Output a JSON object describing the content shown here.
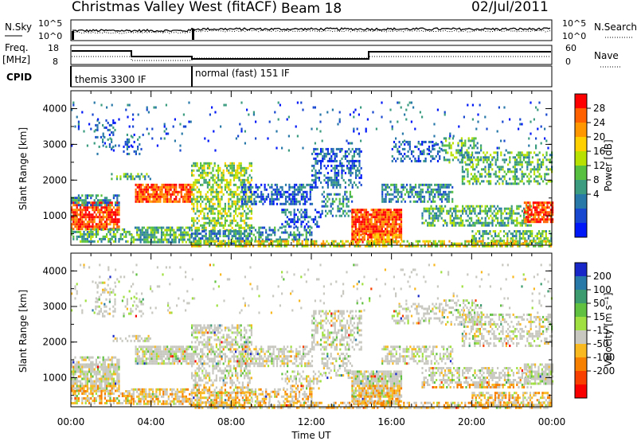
{
  "header": {
    "title": "Christmas Valley West (fitACF)",
    "beam": "Beam 18",
    "date": "02/Jul/2011"
  },
  "top_panels": {
    "nsky": {
      "label": "N.Sky",
      "left_ticks": [
        "10^5",
        "10^0"
      ],
      "right_ticks": [
        "10^5",
        "10^0"
      ],
      "right_label": "N.Search"
    },
    "freq": {
      "label_line1": "Freq.",
      "label_line2": "[MHz]",
      "left_ticks": [
        "18",
        "8"
      ],
      "right_ticks": [
        "60",
        "0"
      ],
      "right_label": "Nave"
    },
    "cpid": {
      "label": "CPID",
      "modes": [
        "themis 3300 IF",
        "normal (fast) 151 IF"
      ]
    }
  },
  "colorbars": {
    "power": {
      "label": "Power [dB]",
      "ticks": [
        "28",
        "24",
        "20",
        "16",
        "12",
        "8",
        "4"
      ],
      "colors": [
        "#ff0000",
        "#ff6000",
        "#ff9800",
        "#ffd000",
        "#b8e000",
        "#58c040",
        "#3c9c80",
        "#2878a8",
        "#1848d0",
        "#0018f8"
      ]
    },
    "velocity": {
      "label": "Velocity [m s⁻¹]",
      "ticks": [
        "200",
        "100",
        "50",
        "15",
        "-15",
        "-50",
        "-100",
        "-200"
      ],
      "colors": [
        "#1828c8",
        "#2878a8",
        "#3c9c70",
        "#60c040",
        "#a0e040",
        "#c8c8c0",
        "#f8b820",
        "#f88000",
        "#f84000",
        "#f80000"
      ]
    }
  },
  "chart_data": [
    {
      "type": "heatmap",
      "name": "power",
      "ylabel": "Slant Range [km]",
      "yticks": [
        "4000",
        "3000",
        "2000",
        "1000"
      ],
      "ylim": [
        180,
        4500
      ],
      "xlim_hours": [
        0,
        24
      ],
      "xticks": [
        "00:00",
        "04:00",
        "08:00",
        "12:00",
        "16:00",
        "20:00",
        "00:00"
      ],
      "xlabel": "Time UT"
    },
    {
      "type": "heatmap",
      "name": "velocity",
      "ylabel": "Slant Range [km]",
      "yticks": [
        "4000",
        "3000",
        "2000",
        "1000"
      ],
      "ylim": [
        180,
        4500
      ],
      "xlim_hours": [
        0,
        24
      ],
      "xticks": [
        "00:00",
        "04:00",
        "08:00",
        "12:00",
        "16:00",
        "20:00",
        "00:00"
      ],
      "xlabel": "Time UT"
    }
  ]
}
